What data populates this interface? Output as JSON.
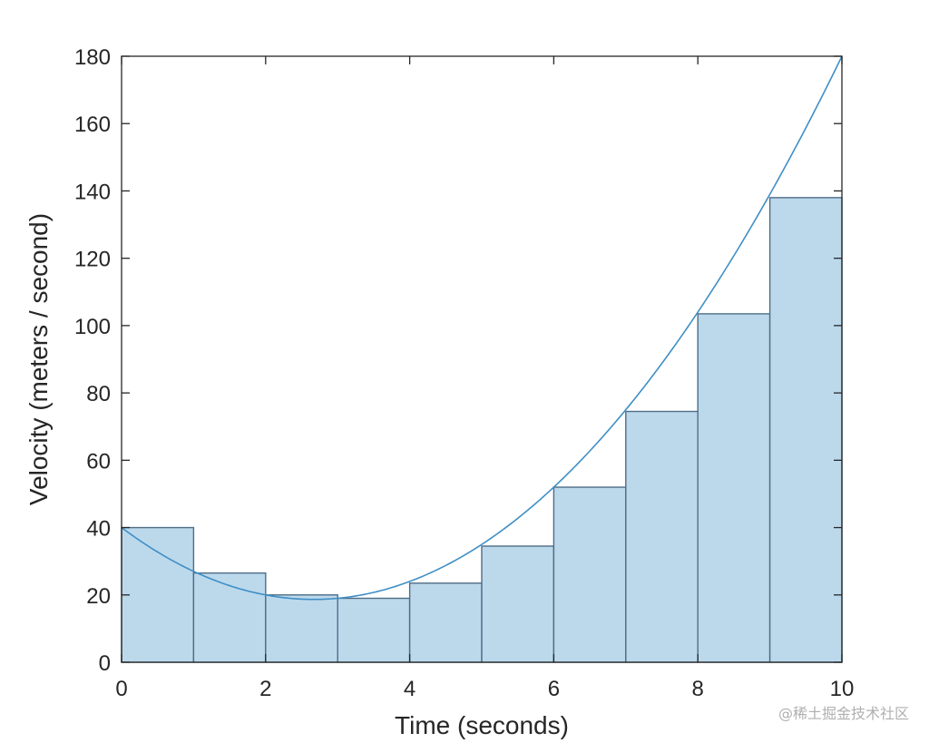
{
  "chart_data": {
    "type": "bar",
    "xlabel": "Time (seconds)",
    "ylabel": "Velocity (meters / second)",
    "xlim": [
      0,
      10
    ],
    "ylim": [
      0,
      180
    ],
    "x_ticks": [
      "0",
      "2",
      "4",
      "6",
      "8",
      "10"
    ],
    "y_ticks": [
      "0",
      "20",
      "40",
      "60",
      "80",
      "100",
      "120",
      "140",
      "160",
      "180"
    ],
    "grid": false,
    "bars": {
      "edges": [
        0,
        1,
        2,
        3,
        4,
        5,
        6,
        7,
        8,
        9,
        10
      ],
      "values": [
        40,
        26.5,
        20,
        19,
        23.5,
        34.5,
        52,
        74.5,
        103.5,
        138
      ]
    },
    "curve": {
      "name": "",
      "equation_coefficients": {
        "a": 3,
        "b": -16,
        "c": 40
      },
      "x_range": [
        0,
        10
      ]
    },
    "colors": {
      "bar_fill": "#bcd9ec",
      "bar_edge": "#4f6d86",
      "curve": "#3f8fc6",
      "axis": "#262626"
    }
  },
  "watermark": "@稀土掘金技术社区"
}
